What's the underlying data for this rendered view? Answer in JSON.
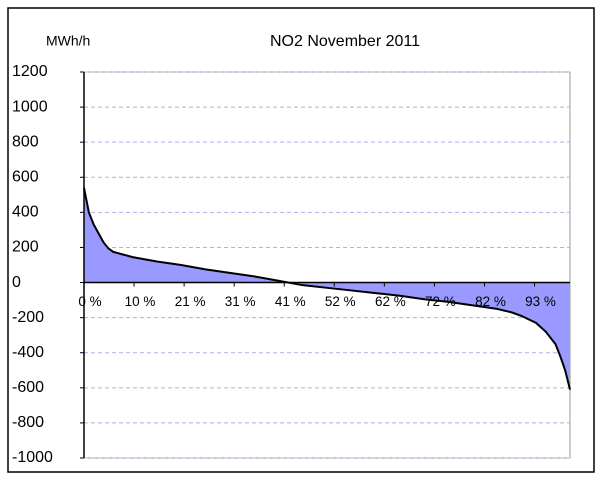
{
  "chart_data": {
    "type": "area",
    "title": "NO2  November 2011",
    "y_label": "MWh/h",
    "x": [
      0,
      1,
      2,
      3,
      4,
      5,
      6,
      8,
      10,
      15,
      20,
      25,
      30,
      35,
      40,
      42,
      45,
      50,
      55,
      60,
      65,
      70,
      75,
      80,
      85,
      88,
      90,
      93,
      95,
      97,
      98,
      99,
      100
    ],
    "series": [
      {
        "name": "NO2",
        "color": "#9999ff",
        "values": [
          540,
          400,
          330,
          280,
          230,
          195,
          175,
          160,
          145,
          120,
          100,
          75,
          55,
          35,
          10,
          0,
          -15,
          -30,
          -45,
          -60,
          -75,
          -95,
          -110,
          -130,
          -150,
          -170,
          -190,
          -230,
          -280,
          -350,
          -420,
          -500,
          -610
        ]
      }
    ],
    "xlim": [
      0,
      100
    ],
    "xticks": [
      {
        "value": 0,
        "label": "0 %"
      },
      {
        "value": 10.3,
        "label": "10 %"
      },
      {
        "value": 20.6,
        "label": "21 %"
      },
      {
        "value": 30.9,
        "label": "31 %"
      },
      {
        "value": 41.2,
        "label": "41 %"
      },
      {
        "value": 51.5,
        "label": "52 %"
      },
      {
        "value": 61.8,
        "label": "62 %"
      },
      {
        "value": 72.1,
        "label": "72 %"
      },
      {
        "value": 82.4,
        "label": "82 %"
      },
      {
        "value": 92.7,
        "label": "93 %"
      }
    ],
    "ylim": [
      -1000,
      1200
    ],
    "yticks": [
      -1000,
      -800,
      -600,
      -400,
      -200,
      0,
      200,
      400,
      600,
      800,
      1000,
      1200
    ],
    "grid": true,
    "grid_color": "#b0b0e8"
  }
}
